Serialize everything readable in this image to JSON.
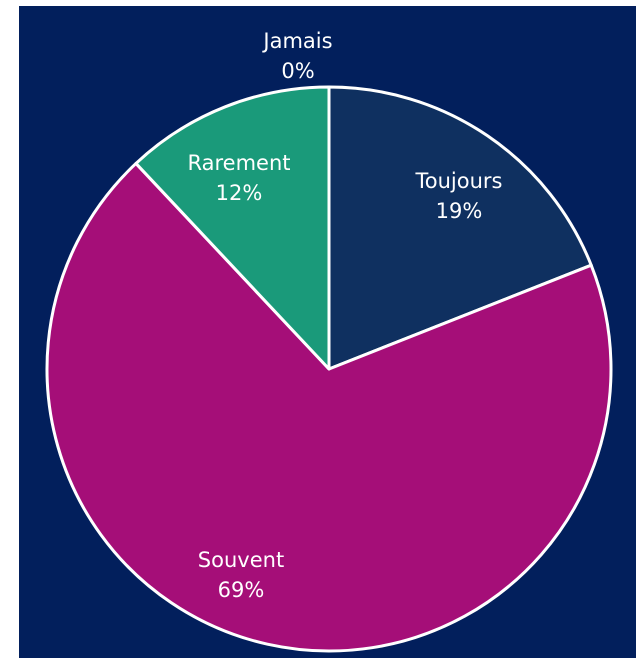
{
  "chart_data": {
    "type": "pie",
    "start_angle_deg": 0,
    "direction": "clockwise",
    "slices": [
      {
        "label": "Toujours",
        "value": 19,
        "value_label": "19%",
        "color": "#0f3060"
      },
      {
        "label": "Souvent",
        "value": 69,
        "value_label": "69%",
        "color": "#a50e78"
      },
      {
        "label": "Rarement",
        "value": 12,
        "value_label": "12%",
        "color": "#1a9a7a"
      },
      {
        "label": "Jamais",
        "value": 0,
        "value_label": "0%",
        "color": "#2e8fd0"
      }
    ],
    "title": "",
    "legend": "none",
    "label_position": "inside"
  },
  "colors": {
    "background": "#021f5c",
    "slice_border": "#ffffff",
    "text": "#ffffff"
  }
}
